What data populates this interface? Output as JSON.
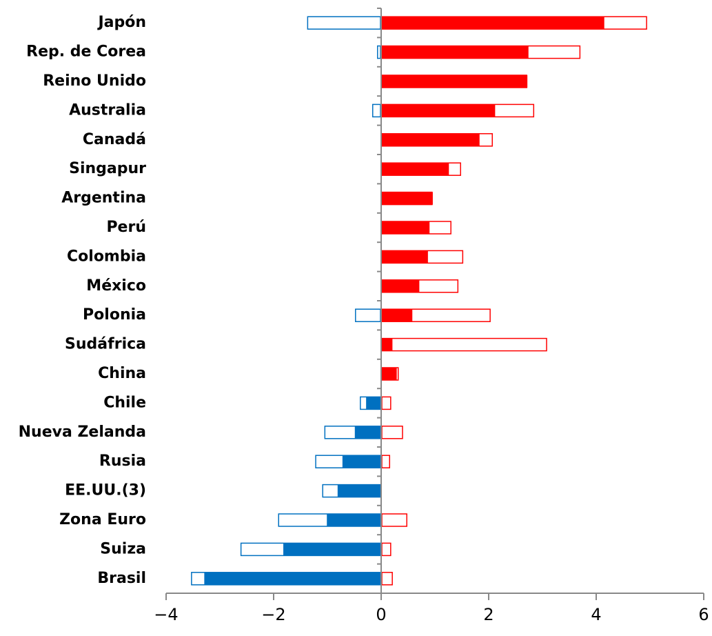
{
  "chart_data": {
    "type": "bar",
    "orientation": "horizontal",
    "categories": [
      "Japón",
      "Rep. de Corea",
      "Reino Unido",
      "Australia",
      "Canadá",
      "Singapur",
      "Argentina",
      "Perú",
      "Colombia",
      "México",
      "Polonia",
      "Sudáfrica",
      "China",
      "Chile",
      "Nueva Zelanda",
      "Rusia",
      "EE.UU.(3)",
      "Zona Euro",
      "Suiza",
      "Brasil"
    ],
    "series": [
      {
        "color": "#0070c0",
        "style": "outline",
        "values": [
          -1.38,
          -0.08,
          0,
          -0.17,
          0,
          0,
          0,
          0,
          0,
          0,
          -0.49,
          0,
          0,
          -0.4,
          -1.06,
          -1.23,
          -1.1,
          -1.92,
          -2.62,
          -3.54
        ]
      },
      {
        "color": "#ff0000",
        "style": "outline",
        "values": [
          4.95,
          3.71,
          2.72,
          2.85,
          2.08,
          1.49,
          0.96,
          1.31,
          1.53,
          1.44,
          2.04,
          3.09,
          0.33,
          0.19,
          0.41,
          0.17,
          0,
          0.49,
          0.19,
          0.22
        ]
      },
      {
        "style": "filled",
        "values": [
          4.15,
          2.74,
          2.72,
          2.12,
          1.83,
          1.26,
          0.96,
          0.9,
          0.87,
          0.71,
          0.58,
          0.21,
          0.29,
          -0.28,
          -0.49,
          -0.72,
          -0.81,
          -1.01,
          -1.82,
          -3.29
        ]
      }
    ],
    "positive_color": "#ff0000",
    "negative_color": "#0070c0",
    "xlim": [
      -4,
      6
    ],
    "xticks": [
      {
        "value": -4,
        "label": "−4"
      },
      {
        "value": -2,
        "label": "−2"
      },
      0,
      2,
      4,
      6
    ]
  }
}
